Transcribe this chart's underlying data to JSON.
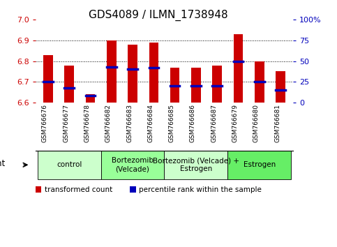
{
  "title": "GDS4089 / ILMN_1738948",
  "samples": [
    "GSM766676",
    "GSM766677",
    "GSM766678",
    "GSM766682",
    "GSM766683",
    "GSM766684",
    "GSM766685",
    "GSM766686",
    "GSM766687",
    "GSM766679",
    "GSM766680",
    "GSM766681"
  ],
  "transformed_count": [
    6.83,
    6.78,
    6.64,
    6.9,
    6.88,
    6.89,
    6.77,
    6.77,
    6.78,
    6.93,
    6.8,
    6.75
  ],
  "percentile_rank": [
    25,
    18,
    8,
    43,
    40,
    42,
    20,
    20,
    20,
    50,
    25,
    15
  ],
  "ymin": 6.6,
  "ymax": 7.0,
  "yticks_left": [
    6.6,
    6.7,
    6.8,
    6.9,
    7.0
  ],
  "yticks_right": [
    0,
    25,
    50,
    75,
    100
  ],
  "grid_lines": [
    6.7,
    6.8,
    6.9
  ],
  "bar_color": "#cc0000",
  "blue_color": "#0000bb",
  "groups": [
    {
      "label": "control",
      "start": 0,
      "end": 3,
      "color": "#ccffcc"
    },
    {
      "label": "Bortezomib\n(Velcade)",
      "start": 3,
      "end": 6,
      "color": "#99ff99"
    },
    {
      "label": "Bortezomib (Velcade) +\nEstrogen",
      "start": 6,
      "end": 9,
      "color": "#ccffcc"
    },
    {
      "label": "Estrogen",
      "start": 9,
      "end": 12,
      "color": "#66ee66"
    }
  ],
  "bar_width": 0.45,
  "title_fontsize": 11,
  "tick_fontsize": 8,
  "sample_fontsize": 6.5,
  "group_fontsize": 7.5,
  "legend_fontsize": 7.5,
  "agent_fontsize": 8.5
}
